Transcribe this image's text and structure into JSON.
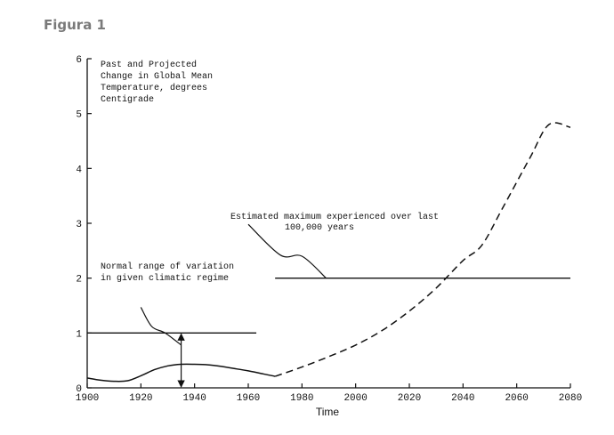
{
  "figure_label": "Figura 1",
  "chart_data": {
    "type": "line",
    "title_lines": [
      "Past and Projected",
      "Change in Global Mean",
      "Temperature, degrees",
      "Centigrade"
    ],
    "xlabel": "Time",
    "ylabel": "",
    "xlim": [
      1900,
      2080
    ],
    "ylim": [
      0,
      6
    ],
    "x_ticks": [
      1900,
      1920,
      1940,
      1960,
      1980,
      2000,
      2020,
      2040,
      2060,
      2080
    ],
    "y_ticks": [
      0,
      1,
      2,
      3,
      4,
      5,
      6
    ],
    "grid": false,
    "series": [
      {
        "style": "solid",
        "x": [
          1900,
          1905,
          1910,
          1915,
          1920,
          1925,
          1930,
          1935,
          1940,
          1945,
          1950,
          1955,
          1960,
          1965,
          1970
        ],
        "y": [
          0.18,
          0.14,
          0.12,
          0.13,
          0.22,
          0.33,
          0.4,
          0.43,
          0.43,
          0.42,
          0.39,
          0.35,
          0.31,
          0.26,
          0.21
        ]
      },
      {
        "style": "dashed",
        "x": [
          1970,
          1980,
          1990,
          2000,
          2010,
          2020,
          2030,
          2040,
          2047,
          2055,
          2065,
          2072,
          2080
        ],
        "y": [
          0.21,
          0.38,
          0.57,
          0.78,
          1.05,
          1.4,
          1.82,
          2.32,
          2.6,
          3.3,
          4.2,
          4.8,
          4.75
        ]
      }
    ],
    "reference_lines": [
      {
        "y": 1,
        "x_start": 1900,
        "x_end": 1963
      },
      {
        "y": 2,
        "x_start": 1970,
        "x_end": 2080
      }
    ],
    "annotations": [
      {
        "text_lines": [
          "Normal range of variation",
          "in given climatic regime"
        ],
        "pointer": [
          [
            1920,
            1.47
          ],
          [
            1924,
            1.12
          ],
          [
            1929,
            1.0
          ],
          [
            1935,
            0.78
          ]
        ]
      },
      {
        "text_lines": [
          "Estimated maximum experienced over last",
          "100,000 years"
        ],
        "pointer": [
          [
            1960,
            2.98
          ],
          [
            1972,
            2.42
          ],
          [
            1980,
            2.4
          ],
          [
            1989,
            2.0
          ]
        ]
      }
    ],
    "range_arrow": {
      "x": 1935,
      "y_from": 0,
      "y_to": 1
    }
  }
}
